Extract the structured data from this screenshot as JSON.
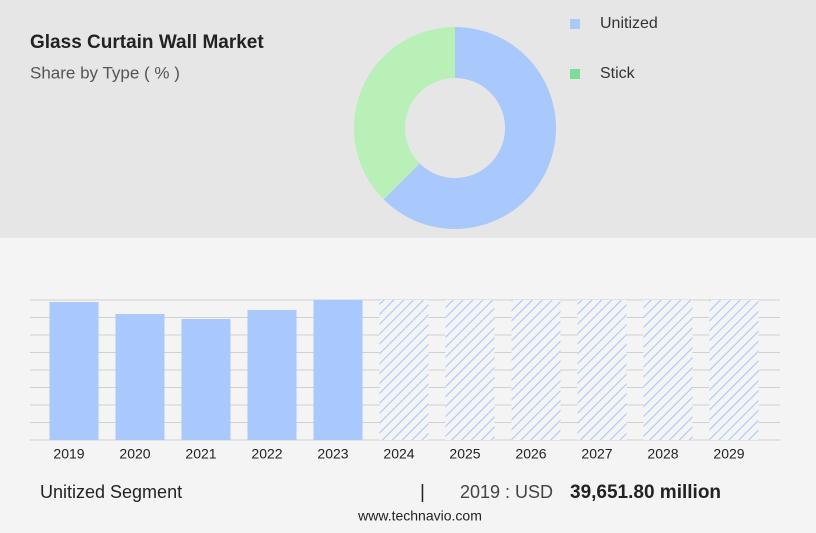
{
  "chart_data": [
    {
      "type": "donut",
      "title": "Glass Curtain Wall Market",
      "subtitle": "Share by Type ( % )",
      "categories": [
        "Unitized",
        "Stick"
      ],
      "values": [
        62.5,
        37.5
      ],
      "colors": [
        "#a9c8fc",
        "#b8f0b8"
      ],
      "legend_colors": [
        "#a9c8fc",
        "#7fdc98"
      ]
    },
    {
      "type": "bar",
      "categories": [
        "2019",
        "2020",
        "2021",
        "2022",
        "2023",
        "2024",
        "2025",
        "2026",
        "2027",
        "2028",
        "2029"
      ],
      "values": [
        138,
        126,
        121,
        130,
        140,
        null,
        null,
        null,
        null,
        null,
        null
      ],
      "color": "#a9c8fc",
      "ylim": [
        0,
        140
      ]
    }
  ],
  "footer": {
    "segment": "Unitized Segment",
    "separator": "|",
    "year": "2019 : USD",
    "value": "39,651.80 million",
    "site": "www.technavio.com"
  }
}
